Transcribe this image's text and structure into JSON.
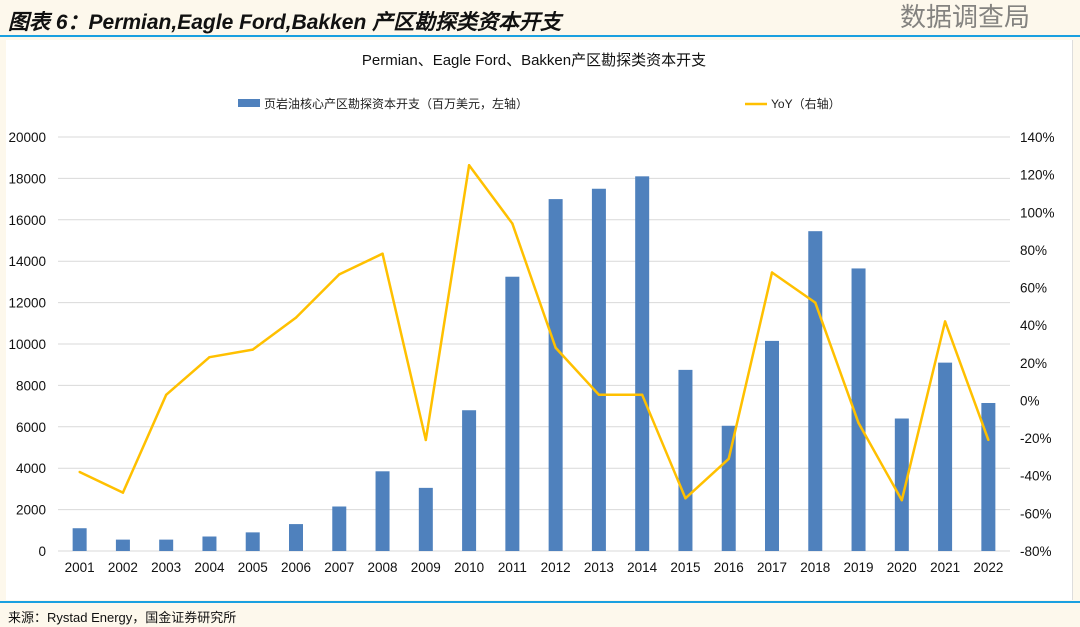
{
  "header": {
    "title": "图表 6：Permian,Eagle Ford,Bakken 产区勘探类资本开支"
  },
  "footer": {
    "source": "来源：Rystad Energy，国金证券研究所"
  },
  "watermark": "数据调查局",
  "colors": {
    "bar": "#4f81bd",
    "line": "#ffc000",
    "accent": "#1aa0e0"
  },
  "chart_data": {
    "type": "bar+line",
    "title": "Permian、Eagle Ford、Bakken产区勘探类资本开支",
    "categories": [
      "2001",
      "2002",
      "2003",
      "2004",
      "2005",
      "2006",
      "2007",
      "2008",
      "2009",
      "2010",
      "2011",
      "2012",
      "2013",
      "2014",
      "2015",
      "2016",
      "2017",
      "2018",
      "2019",
      "2020",
      "2021",
      "2022"
    ],
    "series": [
      {
        "name": "页岩油核心产区勘探资本开支（百万美元，左轴）",
        "type": "bar",
        "axis": "left",
        "values": [
          1100,
          550,
          550,
          700,
          900,
          1300,
          2150,
          3850,
          3050,
          6800,
          13250,
          17000,
          17500,
          18100,
          8750,
          6050,
          10150,
          15450,
          13650,
          6400,
          9100,
          7150
        ]
      },
      {
        "name": "YoY（右轴）",
        "type": "line",
        "axis": "right",
        "values": [
          -38,
          -49,
          3,
          23,
          27,
          44,
          67,
          78,
          -21,
          125,
          94,
          28,
          3,
          3,
          -52,
          -31,
          68,
          52,
          -12,
          -53,
          42,
          -21
        ]
      }
    ],
    "ylim_left": [
      0,
      20000
    ],
    "yticks_left": [
      "0",
      "2000",
      "4000",
      "6000",
      "8000",
      "10000",
      "12000",
      "14000",
      "16000",
      "18000",
      "20000"
    ],
    "ylim_right": [
      -80,
      140
    ],
    "yticks_right": [
      "-80%",
      "-60%",
      "-40%",
      "-20%",
      "0%",
      "20%",
      "40%",
      "60%",
      "80%",
      "100%",
      "120%",
      "140%"
    ],
    "legend": "top-center",
    "grid": true
  }
}
